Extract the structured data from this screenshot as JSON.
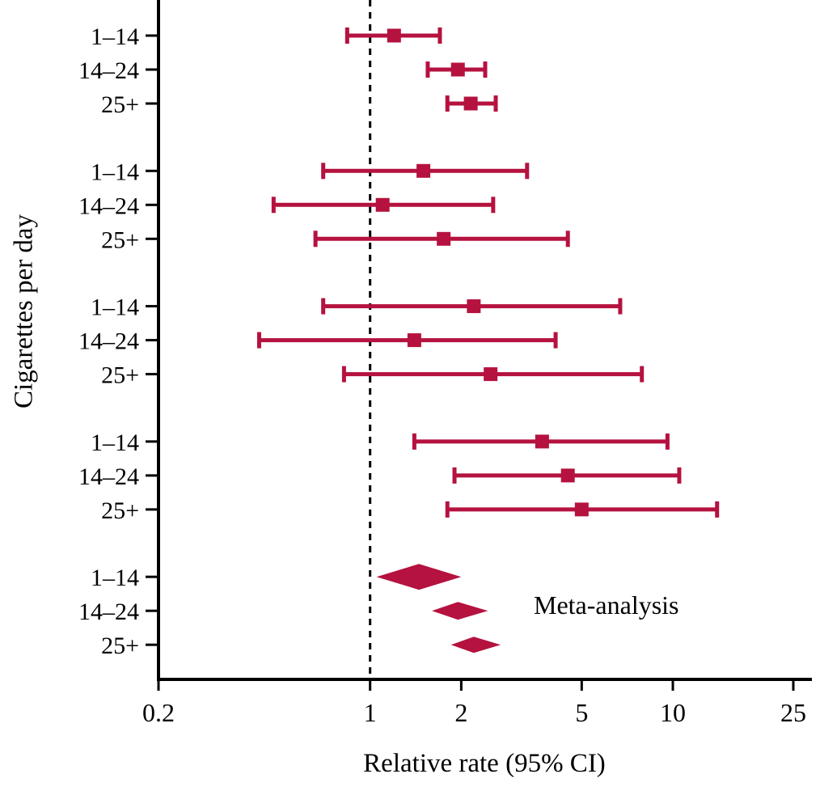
{
  "chart_data": {
    "type": "forest",
    "xlabel": "Relative rate (95% CI)",
    "ylabel": "Cigarettes per day",
    "annotation": "Meta-analysis",
    "x_scale": "log",
    "x_range": [
      0.2,
      25
    ],
    "x_ticks": [
      0.2,
      1,
      2,
      5,
      10,
      25
    ],
    "reference_line": 1,
    "marker_color": "#b5123f",
    "axis_color": "#000000",
    "legend": "none",
    "grid": false,
    "groups": [
      {
        "summary": false,
        "rows": [
          {
            "label": "1–14",
            "estimate": 1.2,
            "lower": 0.84,
            "upper": 1.7
          },
          {
            "label": "14–24",
            "estimate": 1.95,
            "lower": 1.55,
            "upper": 2.4
          },
          {
            "label": "25+",
            "estimate": 2.15,
            "lower": 1.8,
            "upper": 2.6
          }
        ]
      },
      {
        "summary": false,
        "rows": [
          {
            "label": "1–14",
            "estimate": 1.5,
            "lower": 0.7,
            "upper": 3.3
          },
          {
            "label": "14–24",
            "estimate": 1.1,
            "lower": 0.48,
            "upper": 2.55
          },
          {
            "label": "25+",
            "estimate": 1.75,
            "lower": 0.66,
            "upper": 4.5
          }
        ]
      },
      {
        "summary": false,
        "rows": [
          {
            "label": "1–14",
            "estimate": 2.2,
            "lower": 0.7,
            "upper": 6.7
          },
          {
            "label": "14–24",
            "estimate": 1.4,
            "lower": 0.43,
            "upper": 4.1
          },
          {
            "label": "25+",
            "estimate": 2.5,
            "lower": 0.82,
            "upper": 7.9
          }
        ]
      },
      {
        "summary": false,
        "rows": [
          {
            "label": "1–14",
            "estimate": 3.7,
            "lower": 1.4,
            "upper": 9.6
          },
          {
            "label": "14–24",
            "estimate": 4.5,
            "lower": 1.9,
            "upper": 10.5
          },
          {
            "label": "25+",
            "estimate": 5.0,
            "lower": 1.8,
            "upper": 14.0
          }
        ]
      },
      {
        "summary": true,
        "diamond_heights": [
          32,
          22,
          20
        ],
        "rows": [
          {
            "label": "1–14",
            "estimate": 1.45,
            "lower": 1.05,
            "upper": 2.0
          },
          {
            "label": "14–24",
            "estimate": 1.95,
            "lower": 1.6,
            "upper": 2.45
          },
          {
            "label": "25+",
            "estimate": 2.2,
            "lower": 1.85,
            "upper": 2.7
          }
        ]
      }
    ]
  }
}
